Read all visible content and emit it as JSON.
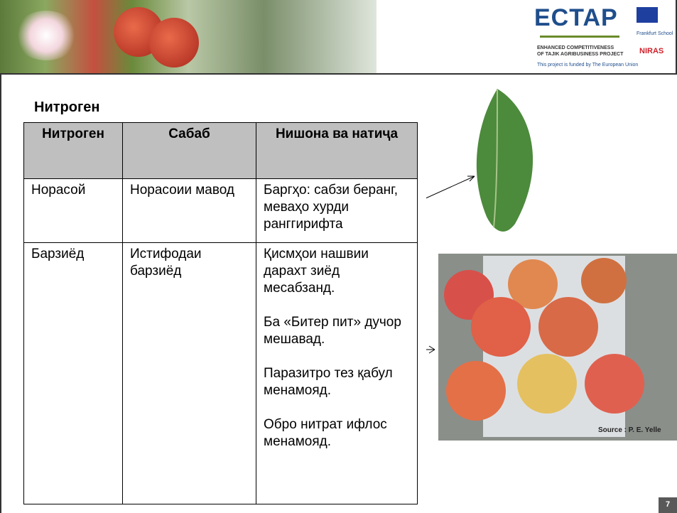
{
  "header": {
    "logo_title": "ECTAP",
    "logo_subtitle": [
      "ENHANCED COMPETITIVENESS",
      "OF TAJIK AGRIBUSINESS PROJECT"
    ],
    "funding": "This project is funded by The European Union",
    "partners": [
      "Frankfurt School",
      "NIRAS"
    ]
  },
  "title": "Нитроген",
  "table": {
    "headers": [
      "Нитроген",
      "Сабаб",
      "Нишона ва натиҷа"
    ],
    "rows": [
      [
        "Норасой",
        "Норасоии мавод",
        [
          "Баргҳо: сабзи беранг, меваҳо хурди ранггирифта"
        ]
      ],
      [
        "Барзиёд",
        "Истифодаи барзиёд",
        [
          "Қисмҳои нашвии дарахт зиёд месабзанд.",
          "Ба «Битер пит» дучор мешавад.",
          "Паразитро тез қабул менамояд.",
          "Обро нитрат ифлос менамояд."
        ]
      ]
    ]
  },
  "image_caption": "Source : P. E. Yelle",
  "page_number": "7"
}
